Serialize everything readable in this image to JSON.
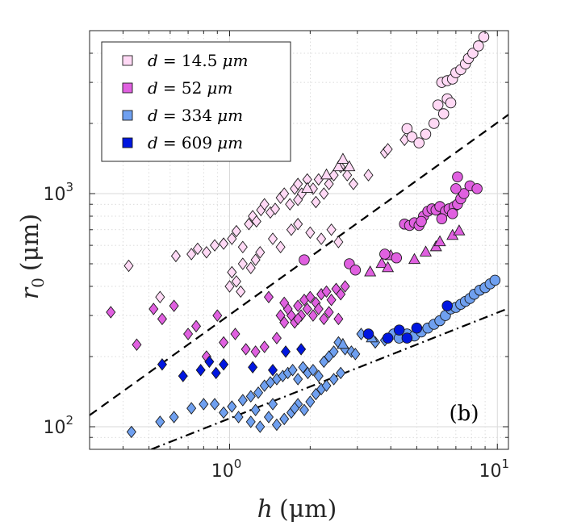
{
  "chart_data": {
    "type": "scatter",
    "xscale": "log",
    "yscale": "log",
    "xlim": [
      0.3,
      11
    ],
    "ylim": [
      80,
      5000
    ],
    "xlabel": {
      "sym": "h",
      "unit": "(μm)"
    },
    "ylabel": {
      "sym": "r",
      "sub": "0",
      "unit": "(μm)"
    },
    "x_ticks": [
      {
        "value": 1,
        "base": "10",
        "exp": "0"
      },
      {
        "value": 10,
        "base": "10",
        "exp": "1"
      }
    ],
    "y_ticks": [
      {
        "value": 100,
        "base": "10",
        "exp": "2"
      },
      {
        "value": 1000,
        "base": "10",
        "exp": "3"
      }
    ],
    "grid": true,
    "panel_label": "(b)",
    "legend_position": "top-left",
    "series": [
      {
        "name": "d = 14.5 μm",
        "legend_var": "d",
        "legend_eq": "= 14.5",
        "legend_unit": "μm",
        "color": "#ffd9f5",
        "diamonds": [
          [
            0.42,
            490
          ],
          [
            0.55,
            360
          ],
          [
            0.63,
            540
          ],
          [
            0.72,
            550
          ],
          [
            0.76,
            580
          ],
          [
            0.82,
            560
          ],
          [
            0.88,
            600
          ],
          [
            0.95,
            610
          ],
          [
            1.02,
            640
          ],
          [
            1.06,
            690
          ],
          [
            1.12,
            590
          ],
          [
            1.18,
            740
          ],
          [
            1.22,
            800
          ],
          [
            1.26,
            760
          ],
          [
            1.31,
            850
          ],
          [
            1.35,
            900
          ],
          [
            1.42,
            830
          ],
          [
            1.48,
            860
          ],
          [
            1.55,
            960
          ],
          [
            1.6,
            1000
          ],
          [
            1.68,
            900
          ],
          [
            1.75,
            1050
          ],
          [
            1.8,
            1100
          ],
          [
            1.86,
            1000
          ],
          [
            1.95,
            1150
          ],
          [
            2.05,
            1050
          ],
          [
            2.15,
            1150
          ],
          [
            2.25,
            1000
          ],
          [
            2.35,
            1100
          ],
          [
            2.45,
            1200
          ],
          [
            2.6,
            1300
          ],
          [
            2.75,
            1200
          ],
          [
            2.9,
            1100
          ],
          [
            1.02,
            460
          ],
          [
            1.06,
            420
          ],
          [
            1.12,
            500
          ],
          [
            1.2,
            480
          ],
          [
            1.3,
            560
          ],
          [
            1.45,
            640
          ],
          [
            1.55,
            590
          ],
          [
            1.7,
            700
          ],
          [
            1.8,
            740
          ],
          [
            2.0,
            680
          ],
          [
            2.2,
            640
          ],
          [
            2.4,
            700
          ],
          [
            2.55,
            620
          ],
          [
            1.0,
            400
          ],
          [
            1.1,
            380
          ],
          [
            1.25,
            520
          ],
          [
            1.8,
            940
          ],
          [
            2.1,
            920
          ],
          [
            3.3,
            1200
          ],
          [
            3.8,
            1500
          ],
          [
            3.9,
            1550
          ],
          [
            4.5,
            1700
          ]
        ],
        "triangles": [
          [
            1.95,
            1050
          ],
          [
            2.3,
            1200
          ],
          [
            2.55,
            1300
          ],
          [
            2.65,
            1400
          ],
          [
            2.8,
            1300
          ]
        ],
        "circles": [
          [
            4.6,
            1900
          ],
          [
            4.8,
            1750
          ],
          [
            5.1,
            1650
          ],
          [
            5.4,
            1800
          ],
          [
            5.8,
            2000
          ],
          [
            6.0,
            2400
          ],
          [
            6.3,
            2200
          ],
          [
            6.5,
            2550
          ],
          [
            6.7,
            2450
          ],
          [
            6.2,
            3000
          ],
          [
            6.5,
            3050
          ],
          [
            6.8,
            3100
          ],
          [
            7.0,
            3300
          ],
          [
            7.3,
            3400
          ],
          [
            7.6,
            3600
          ],
          [
            7.8,
            3800
          ],
          [
            8.1,
            4000
          ],
          [
            8.5,
            4300
          ],
          [
            8.9,
            4700
          ]
        ]
      },
      {
        "name": "d = 52 μm",
        "legend_var": "d",
        "legend_eq": "= 52",
        "legend_unit": "μm",
        "color": "#e060e0",
        "diamonds": [
          [
            0.36,
            310
          ],
          [
            0.45,
            225
          ],
          [
            0.52,
            320
          ],
          [
            0.56,
            290
          ],
          [
            0.62,
            330
          ],
          [
            0.7,
            250
          ],
          [
            0.75,
            270
          ],
          [
            0.82,
            200
          ],
          [
            0.9,
            300
          ],
          [
            0.95,
            230
          ],
          [
            1.05,
            250
          ],
          [
            1.15,
            215
          ],
          [
            1.25,
            210
          ],
          [
            1.35,
            220
          ],
          [
            1.5,
            240
          ],
          [
            1.6,
            280
          ],
          [
            1.7,
            300
          ],
          [
            1.8,
            330
          ],
          [
            1.9,
            350
          ],
          [
            2.0,
            360
          ],
          [
            2.1,
            340
          ],
          [
            2.2,
            370
          ],
          [
            2.3,
            380
          ],
          [
            2.4,
            350
          ],
          [
            2.5,
            390
          ],
          [
            2.6,
            370
          ],
          [
            2.7,
            400
          ],
          [
            1.55,
            300
          ],
          [
            1.65,
            320
          ],
          [
            1.75,
            280
          ],
          [
            1.85,
            300
          ],
          [
            1.95,
            320
          ],
          [
            2.05,
            300
          ],
          [
            2.15,
            320
          ],
          [
            2.25,
            290
          ],
          [
            2.35,
            310
          ],
          [
            2.55,
            290
          ],
          [
            1.4,
            360
          ],
          [
            1.6,
            340
          ],
          [
            1.8,
            290
          ]
        ],
        "triangles": [
          [
            3.35,
            460
          ],
          [
            3.7,
            500
          ],
          [
            3.9,
            480
          ],
          [
            4.0,
            540
          ],
          [
            4.9,
            520
          ],
          [
            5.4,
            560
          ],
          [
            5.9,
            590
          ],
          [
            6.1,
            620
          ],
          [
            6.8,
            660
          ],
          [
            7.2,
            690
          ]
        ],
        "circles": [
          [
            1.9,
            520
          ],
          [
            2.8,
            500
          ],
          [
            2.95,
            470
          ],
          [
            3.8,
            550
          ],
          [
            4.2,
            530
          ],
          [
            4.5,
            740
          ],
          [
            4.7,
            730
          ],
          [
            4.9,
            750
          ],
          [
            5.1,
            730
          ],
          [
            5.3,
            800
          ],
          [
            5.5,
            840
          ],
          [
            5.7,
            860
          ],
          [
            5.9,
            850
          ],
          [
            6.1,
            880
          ],
          [
            6.4,
            840
          ],
          [
            6.6,
            860
          ],
          [
            6.9,
            880
          ],
          [
            7.1,
            900
          ],
          [
            7.3,
            950
          ],
          [
            7.5,
            1000
          ],
          [
            7.9,
            1080
          ],
          [
            8.4,
            1050
          ],
          [
            7.0,
            1050
          ],
          [
            7.1,
            1180
          ],
          [
            5.2,
            760
          ],
          [
            6.2,
            780
          ],
          [
            6.8,
            820
          ]
        ]
      },
      {
        "name": "d = 334 μm",
        "legend_var": "d",
        "legend_eq": "= 334",
        "legend_unit": "μm",
        "color": "#6fa0f0",
        "diamonds": [
          [
            0.43,
            95
          ],
          [
            0.55,
            105
          ],
          [
            0.62,
            110
          ],
          [
            0.72,
            120
          ],
          [
            0.8,
            125
          ],
          [
            0.88,
            125
          ],
          [
            0.95,
            115
          ],
          [
            1.02,
            122
          ],
          [
            1.08,
            110
          ],
          [
            1.12,
            130
          ],
          [
            1.2,
            135
          ],
          [
            1.28,
            140
          ],
          [
            1.35,
            150
          ],
          [
            1.42,
            155
          ],
          [
            1.5,
            160
          ],
          [
            1.58,
            165
          ],
          [
            1.65,
            170
          ],
          [
            1.72,
            175
          ],
          [
            1.8,
            160
          ],
          [
            1.88,
            180
          ],
          [
            1.96,
            170
          ],
          [
            2.05,
            175
          ],
          [
            2.15,
            165
          ],
          [
            2.25,
            190
          ],
          [
            2.35,
            200
          ],
          [
            2.45,
            210
          ],
          [
            2.55,
            230
          ],
          [
            2.7,
            215
          ],
          [
            2.85,
            210
          ],
          [
            2.95,
            205
          ],
          [
            3.1,
            250
          ],
          [
            3.5,
            230
          ],
          [
            3.8,
            235
          ],
          [
            1.2,
            105
          ],
          [
            1.3,
            100
          ],
          [
            1.4,
            110
          ],
          [
            1.5,
            102
          ],
          [
            1.6,
            108
          ],
          [
            1.7,
            115
          ],
          [
            1.8,
            125
          ],
          [
            1.9,
            118
          ],
          [
            2.0,
            128
          ],
          [
            2.1,
            138
          ],
          [
            2.2,
            145
          ],
          [
            2.3,
            150
          ],
          [
            2.45,
            160
          ],
          [
            2.6,
            170
          ],
          [
            1.25,
            118
          ],
          [
            1.45,
            125
          ],
          [
            1.75,
            120
          ]
        ],
        "triangles": [
          [
            2.65,
            225
          ],
          [
            3.4,
            240
          ]
        ],
        "circles": [
          [
            4.1,
            250
          ],
          [
            4.3,
            240
          ],
          [
            4.6,
            250
          ],
          [
            4.9,
            245
          ],
          [
            5.2,
            255
          ],
          [
            5.5,
            265
          ],
          [
            5.8,
            275
          ],
          [
            6.1,
            285
          ],
          [
            6.4,
            300
          ],
          [
            6.7,
            320
          ],
          [
            7.0,
            325
          ],
          [
            7.3,
            335
          ],
          [
            7.6,
            345
          ],
          [
            7.9,
            355
          ],
          [
            8.2,
            370
          ],
          [
            8.6,
            385
          ],
          [
            9.0,
            395
          ],
          [
            9.4,
            410
          ],
          [
            9.8,
            425
          ]
        ]
      },
      {
        "name": "d = 609 μm",
        "legend_var": "d",
        "legend_eq": "= 609",
        "legend_unit": "μm",
        "color": "#0016e0",
        "diamonds": [
          [
            0.56,
            185
          ],
          [
            0.67,
            165
          ],
          [
            0.78,
            175
          ],
          [
            0.84,
            190
          ],
          [
            0.89,
            170
          ],
          [
            0.95,
            185
          ],
          [
            1.22,
            180
          ],
          [
            1.45,
            175
          ],
          [
            1.62,
            210
          ],
          [
            1.85,
            215
          ]
        ],
        "triangles": [],
        "circles": [
          [
            3.3,
            250
          ],
          [
            3.9,
            240
          ],
          [
            4.3,
            260
          ],
          [
            4.6,
            240
          ],
          [
            5.0,
            265
          ],
          [
            6.5,
            330
          ]
        ]
      }
    ],
    "reference_lines": [
      {
        "style": "dashed",
        "from": [
          0.3,
          112
        ],
        "to": [
          11,
          2180
        ]
      },
      {
        "style": "dashdot",
        "from": [
          0.51,
          80
        ],
        "to": [
          11,
          322
        ]
      }
    ]
  }
}
